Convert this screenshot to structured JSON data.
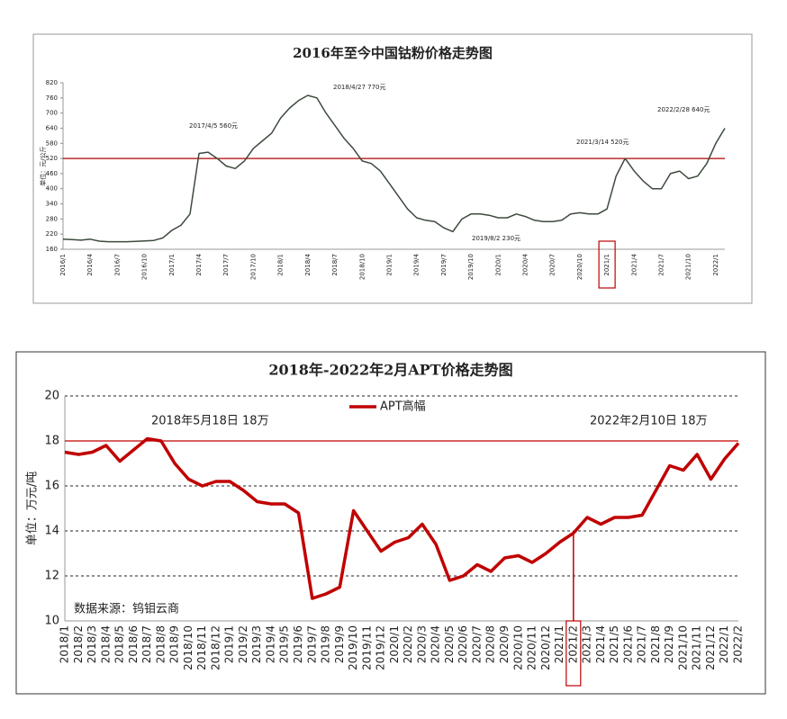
{
  "chart_data": [
    {
      "type": "line",
      "title": "2016年至今中国钴粉价格走势图",
      "y_label": "单位：元/公斤",
      "categories": [
        "2016/1",
        null,
        null,
        "2016/4",
        null,
        null,
        "2016/7",
        null,
        null,
        "2016/10",
        null,
        null,
        "2017/1",
        null,
        null,
        "2017/4",
        null,
        null,
        "2017/7",
        null,
        null,
        "2017/10",
        null,
        null,
        "2018/1",
        null,
        null,
        "2018/4",
        null,
        null,
        "2018/7",
        null,
        null,
        "2018/10",
        null,
        null,
        "2019/1",
        null,
        null,
        "2019/4",
        null,
        null,
        "2019/7",
        null,
        null,
        "2019/10",
        null,
        null,
        "2020/1",
        null,
        null,
        "2020/4",
        null,
        null,
        "2020/7",
        null,
        null,
        "2020/10",
        null,
        null,
        "2021/1",
        null,
        null,
        "2021/4",
        null,
        null,
        "2021/7",
        null,
        null,
        "2021/10",
        null,
        null,
        "2022/1",
        null
      ],
      "values": [
        200,
        198,
        196,
        200,
        192,
        190,
        190,
        190,
        191,
        193,
        195,
        205,
        235,
        255,
        300,
        540,
        545,
        520,
        490,
        480,
        510,
        560,
        590,
        620,
        680,
        720,
        750,
        770,
        760,
        700,
        650,
        600,
        560,
        510,
        500,
        470,
        420,
        370,
        320,
        285,
        275,
        270,
        245,
        230,
        280,
        300,
        300,
        295,
        285,
        285,
        300,
        290,
        275,
        270,
        270,
        275,
        300,
        305,
        300,
        300,
        320,
        450,
        520,
        470,
        430,
        400,
        400,
        460,
        470,
        440,
        450,
        500,
        580,
        640
      ],
      "color": "#3d4a3d",
      "ylim": [
        160,
        820
      ],
      "yticks": [
        160,
        220,
        280,
        340,
        400,
        460,
        520,
        580,
        640,
        700,
        760,
        820
      ],
      "ref_line": 520,
      "ref_color": "#b00000",
      "highlight_x": "2021/1",
      "annotations": [
        "2017/4/5 560元",
        "2018/4/27 770元",
        "2019/8/2 230元",
        "2021/3/14 520元",
        "2022/2/28 640元"
      ]
    },
    {
      "type": "line",
      "title": "2018年-2022年2月APT价格走势图",
      "y_label": "单位：万元/吨",
      "categories": [
        "2018/1",
        "2018/2",
        "2018/3",
        "2018/4",
        "2018/5",
        "2018/6",
        "2018/7",
        "2018/8",
        "2018/9",
        "2018/10",
        "2018/11",
        "2018/12",
        "2019/1",
        "2019/2",
        "2019/3",
        "2019/4",
        "2019/5",
        "2019/6",
        "2019/7",
        "2019/8",
        "2019/9",
        "2019/10",
        "2019/11",
        "2019/12",
        "2020/1",
        "2020/2",
        "2020/3",
        "2020/4",
        "2020/5",
        "2020/6",
        "2020/7",
        "2020/8",
        "2020/9",
        "2020/10",
        "2020/11",
        "2020/12",
        "2021/1",
        "2021/2",
        "2021/3",
        "2021/4",
        "2021/5",
        "2021/6",
        "2021/7",
        "2021/8",
        "2021/9",
        "2021/10",
        "2021/11",
        "2021/12",
        "2022/1",
        "2022/2"
      ],
      "series": [
        {
          "name": "APT高幅",
          "color": "#c00000",
          "values": [
            17.5,
            17.4,
            17.5,
            17.8,
            17.1,
            17.6,
            18.1,
            18.0,
            17.0,
            16.3,
            16.0,
            16.2,
            16.2,
            15.8,
            15.3,
            15.2,
            15.2,
            14.8,
            11.0,
            11.2,
            11.5,
            14.9,
            14.0,
            13.1,
            13.5,
            13.7,
            14.3,
            13.4,
            11.8,
            12.0,
            12.5,
            12.2,
            12.8,
            12.9,
            12.6,
            13.0,
            13.5,
            13.9,
            14.6,
            14.3,
            14.6,
            14.6,
            14.7,
            15.8,
            16.9,
            16.7,
            17.4,
            16.3,
            17.2,
            17.9
          ]
        }
      ],
      "ylim": [
        10,
        20
      ],
      "yticks": [
        10,
        12,
        14,
        16,
        18,
        20
      ],
      "grid": true,
      "ref_line": 18,
      "ref_color": "#c00000",
      "highlight_x": "2021/2",
      "annotations": [
        "2018年5月18日 18万",
        "2022年2月10日 18万",
        "数据来源：钨钼云商"
      ]
    }
  ]
}
